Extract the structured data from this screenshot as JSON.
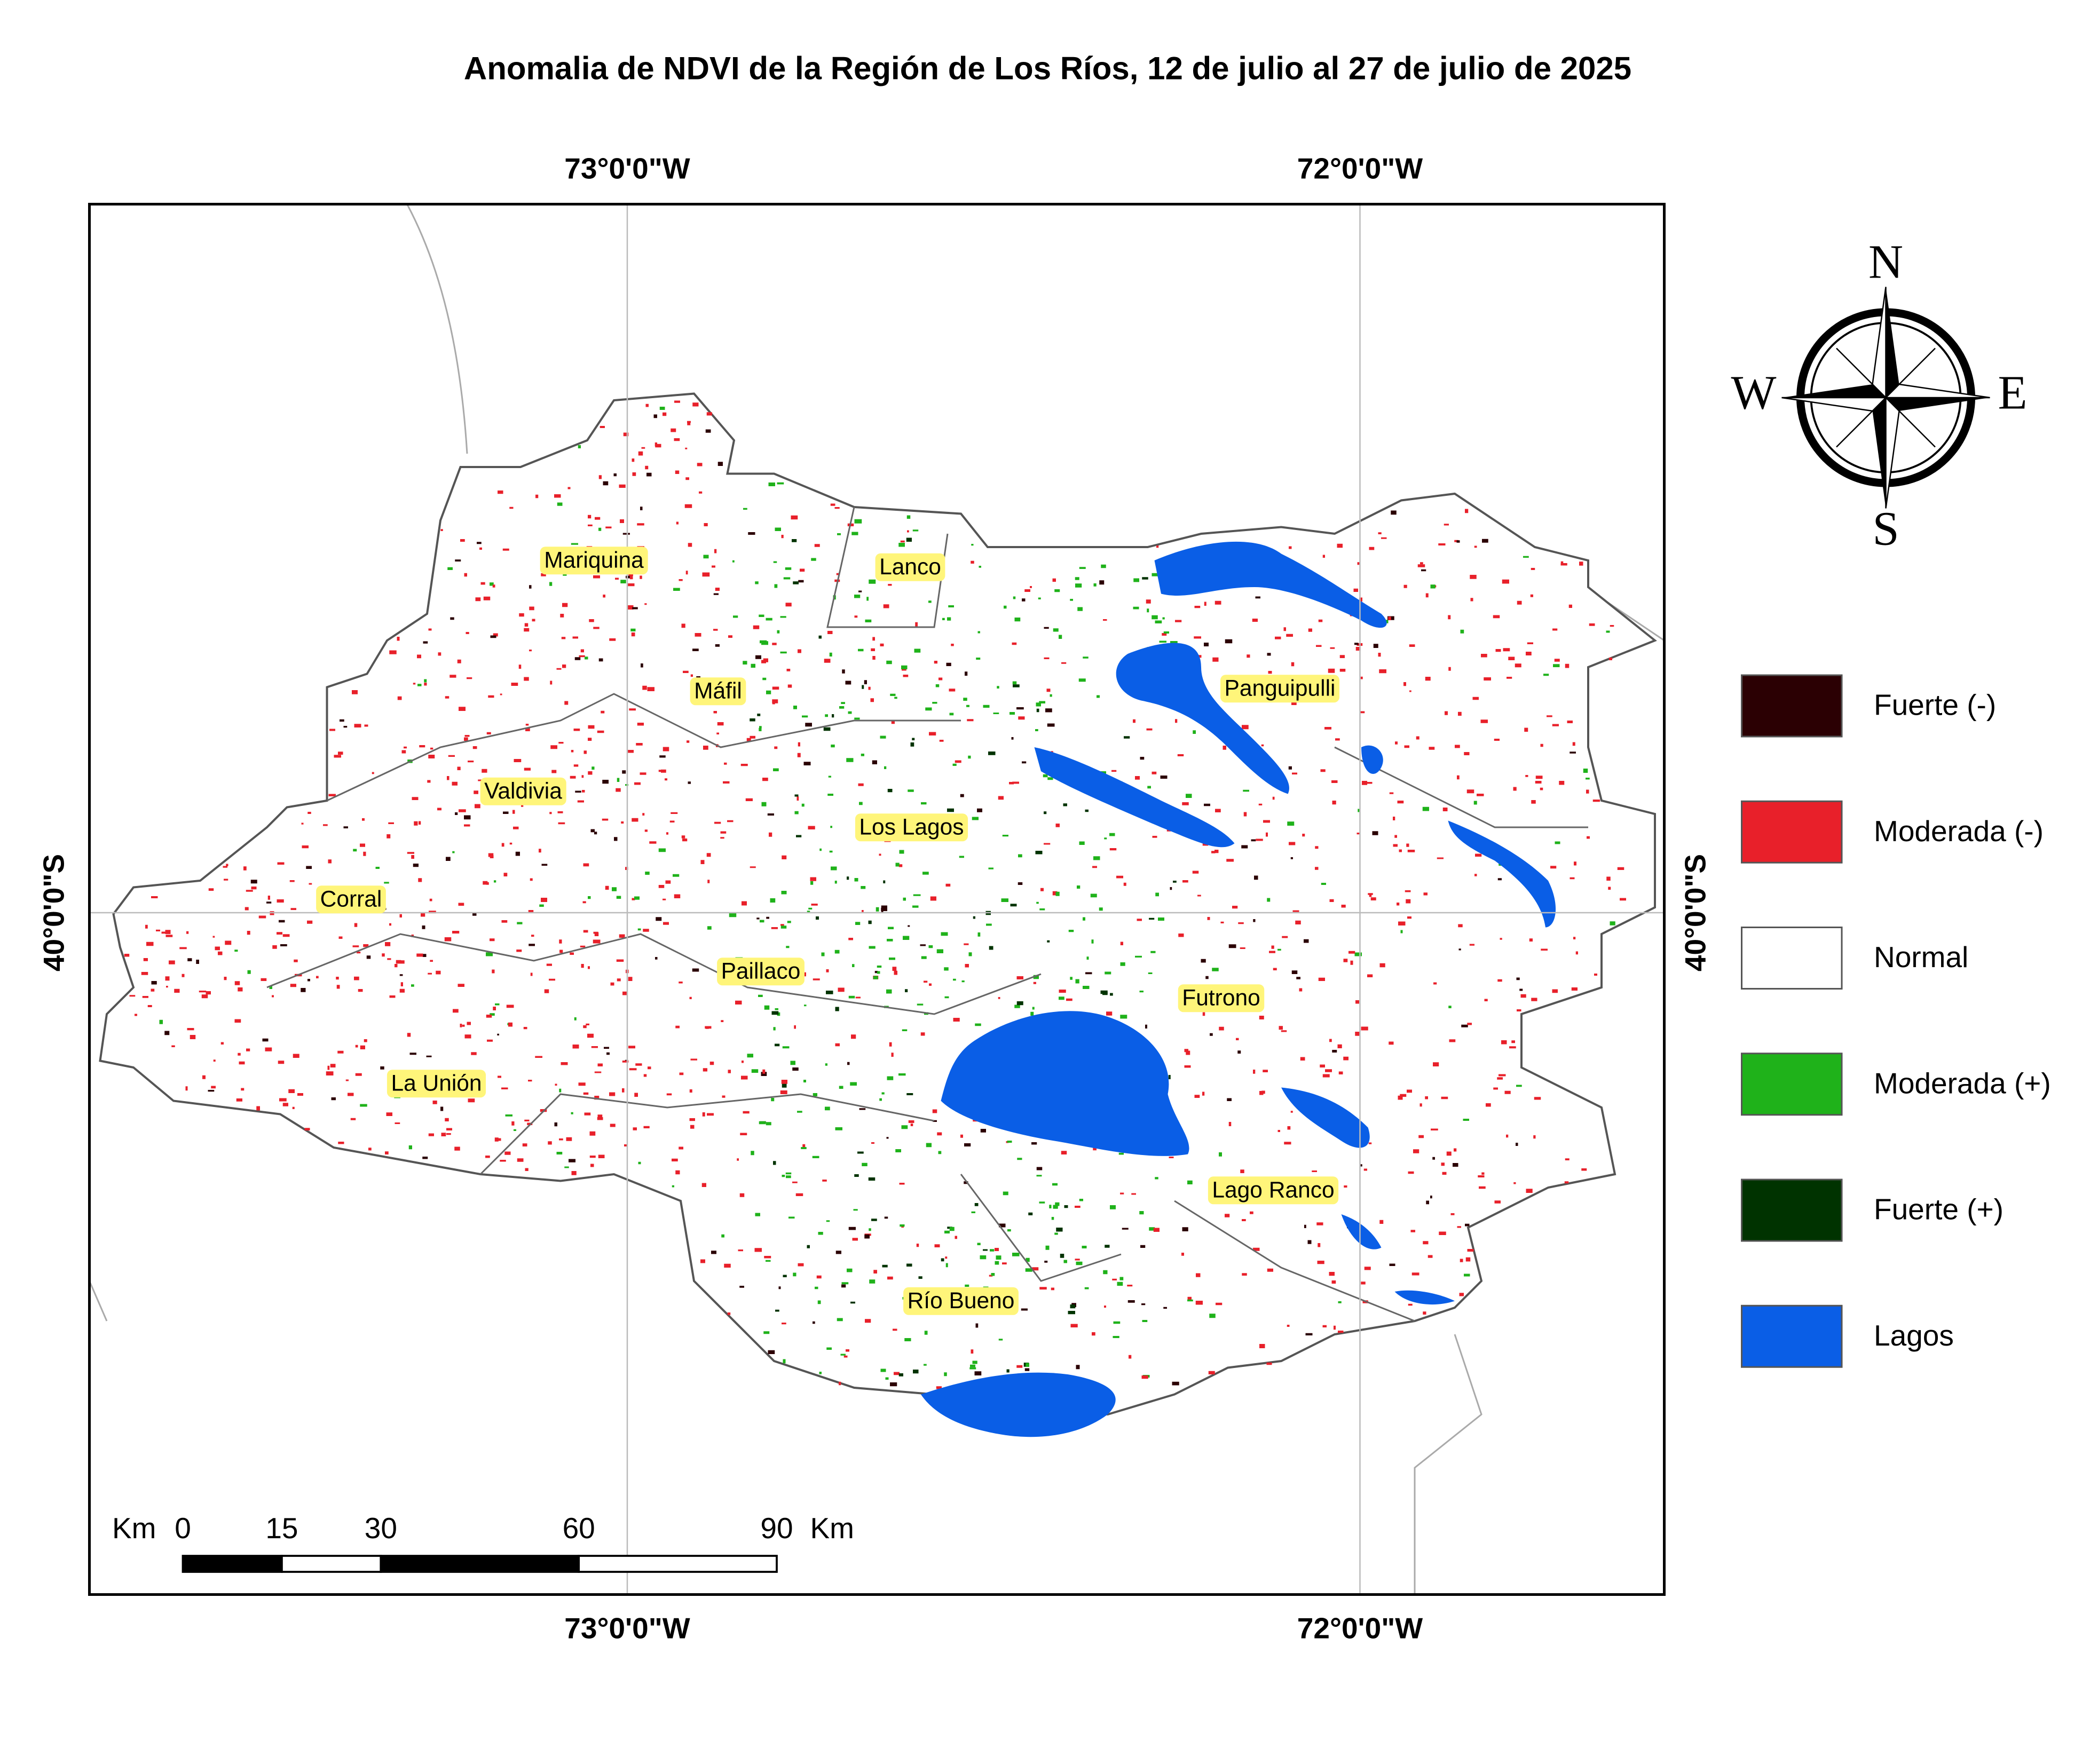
{
  "title": "Anomalia de NDVI de la Región de Los Ríos, 12 de julio al 27 de julio de 2025",
  "graticule": {
    "top": [
      "73°0'0\"W",
      "72°0'0\"W"
    ],
    "bottom": [
      "73°0'0\"W",
      "72°0'0\"W"
    ],
    "left": "40°0'0\"S",
    "right": "40°0'0\"S"
  },
  "places": [
    "Mariquina",
    "Lanco",
    "Máfil",
    "Panguipulli",
    "Valdivia",
    "Los Lagos",
    "Corral",
    "Paillaco",
    "Futrono",
    "La Unión",
    "Lago Ranco",
    "Río Bueno"
  ],
  "legend": [
    {
      "label": "Fuerte (-)",
      "color": "#2b0003"
    },
    {
      "label": "Moderada (-)",
      "color": "#e8202a"
    },
    {
      "label": "Normal",
      "color": "#ffffff"
    },
    {
      "label": "Moderada (+)",
      "color": "#1fb21a"
    },
    {
      "label": "Fuerte (+)",
      "color": "#003300"
    },
    {
      "label": "Lagos",
      "color": "#0a5ee6"
    }
  ],
  "scale_bar": {
    "unit": "Km",
    "ticks": [
      0,
      15,
      30,
      60,
      90
    ],
    "unit_end": "Km"
  },
  "compass": {
    "n": "N",
    "s": "S",
    "e": "E",
    "w": "W"
  }
}
